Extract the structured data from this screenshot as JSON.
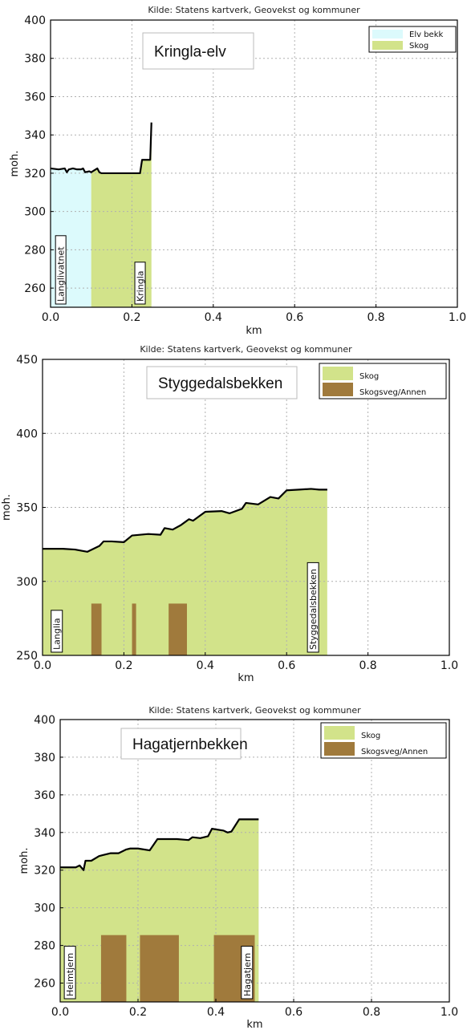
{
  "colors": {
    "elv_bekk": "#dcfafc",
    "skog": "#d2e38a",
    "skogsveg": "#a07a3c",
    "profile_line": "#000000",
    "grid": "#b0b0b0"
  },
  "chart_data": [
    {
      "type": "area",
      "source": "Kilde: Statens kartverk, Geovekst og kommuner",
      "title": "Kringla-elv",
      "xlabel": "km",
      "ylabel": "moh.",
      "xlim": [
        0,
        1.0
      ],
      "ylim": [
        250,
        400
      ],
      "xticks": [
        "0.0",
        "0.2",
        "0.4",
        "0.6",
        "0.8",
        "1.0"
      ],
      "yticks": [
        "260",
        "280",
        "300",
        "320",
        "340",
        "360",
        "380",
        "400"
      ],
      "grid": true,
      "legend_position": "top-right",
      "legend": [
        {
          "label": "Elv bekk",
          "color_key": "elv_bekk"
        },
        {
          "label": "Skog",
          "color_key": "skog"
        }
      ],
      "land_cover": [
        {
          "class": "Elv bekk",
          "from_km": 0.0,
          "to_km": 0.1,
          "color_key": "elv_bekk"
        },
        {
          "class": "Skog",
          "from_km": 0.1,
          "to_km": 0.25,
          "color_key": "skog"
        }
      ],
      "roads": [],
      "road_top": null,
      "profile": {
        "x": [
          0.0,
          0.02,
          0.035,
          0.04,
          0.045,
          0.055,
          0.065,
          0.075,
          0.08,
          0.085,
          0.095,
          0.1,
          0.115,
          0.12,
          0.125,
          0.13,
          0.15,
          0.175,
          0.2,
          0.22,
          0.225,
          0.245,
          0.248
        ],
        "y": [
          322.5,
          322.0,
          322.5,
          320.5,
          322.0,
          322.5,
          322.0,
          322.0,
          322.5,
          320.5,
          321.0,
          320.5,
          322.5,
          320.5,
          320.0,
          320.0,
          320.0,
          320.0,
          320.0,
          320.0,
          327.0,
          327.0,
          346.5
        ]
      },
      "place_labels": [
        {
          "text": "Langlivatnet",
          "x": 0.025
        },
        {
          "text": "Kringla",
          "x": 0.22
        }
      ]
    },
    {
      "type": "area",
      "source": "Kilde: Statens kartverk, Geovekst og kommuner",
      "title": "Styggedalsbekken",
      "xlabel": "km",
      "ylabel": "moh.",
      "xlim": [
        0,
        1.0
      ],
      "ylim": [
        250,
        450
      ],
      "xticks": [
        "0.0",
        "0.2",
        "0.4",
        "0.6",
        "0.8",
        "1.0"
      ],
      "yticks": [
        "250",
        "300",
        "350",
        "400",
        "450"
      ],
      "grid": true,
      "legend_position": "top-right",
      "legend": [
        {
          "label": "Skog",
          "color_key": "skog"
        },
        {
          "label": "Skogsveg/Annen",
          "color_key": "skogsveg"
        }
      ],
      "land_cover": [
        {
          "class": "Skog",
          "from_km": 0.0,
          "to_km": 0.7,
          "color_key": "skog"
        }
      ],
      "roads": [
        {
          "from_km": 0.12,
          "to_km": 0.145
        },
        {
          "from_km": 0.22,
          "to_km": 0.23
        },
        {
          "from_km": 0.31,
          "to_km": 0.355
        }
      ],
      "road_top": 285,
      "profile": {
        "x": [
          0.0,
          0.05,
          0.08,
          0.1,
          0.11,
          0.14,
          0.15,
          0.17,
          0.2,
          0.22,
          0.26,
          0.29,
          0.3,
          0.32,
          0.34,
          0.35,
          0.36,
          0.37,
          0.4,
          0.44,
          0.46,
          0.49,
          0.5,
          0.53,
          0.56,
          0.58,
          0.6,
          0.63,
          0.66,
          0.68,
          0.7
        ],
        "y": [
          322,
          322,
          321.5,
          320.5,
          320,
          324,
          327,
          327,
          326.5,
          331,
          332,
          331.5,
          336,
          335,
          338,
          340,
          342,
          341,
          347,
          347.5,
          346,
          349,
          353,
          352,
          357,
          356,
          361.5,
          362,
          362.5,
          362,
          362
        ]
      },
      "place_labels": [
        {
          "text": "Langlia",
          "x": 0.035
        },
        {
          "text": "Styggedalsbekken",
          "x": 0.665
        }
      ]
    },
    {
      "type": "area",
      "source": "Kilde: Statens kartverk, Geovekst og kommuner",
      "title": "Hagatjernbekken",
      "xlabel": "km",
      "ylabel": "moh.",
      "xlim": [
        0,
        1.0
      ],
      "ylim": [
        250,
        400
      ],
      "xticks": [
        "0.0",
        "0.2",
        "0.4",
        "0.6",
        "0.8",
        "1.0"
      ],
      "yticks": [
        "260",
        "280",
        "300",
        "320",
        "340",
        "360",
        "380",
        "400"
      ],
      "grid": true,
      "legend_position": "top-right",
      "legend": [
        {
          "label": "Skog",
          "color_key": "skog"
        },
        {
          "label": "Skogsveg/Annen",
          "color_key": "skogsveg"
        }
      ],
      "land_cover": [
        {
          "class": "Skog",
          "from_km": 0.0,
          "to_km": 0.515,
          "color_key": "skog"
        }
      ],
      "roads": [
        {
          "from_km": 0.105,
          "to_km": 0.17
        },
        {
          "from_km": 0.205,
          "to_km": 0.305
        },
        {
          "from_km": 0.395,
          "to_km": 0.5
        }
      ],
      "road_top": 285.5,
      "profile": {
        "x": [
          0.0,
          0.04,
          0.05,
          0.06,
          0.065,
          0.08,
          0.1,
          0.13,
          0.15,
          0.17,
          0.18,
          0.2,
          0.23,
          0.25,
          0.26,
          0.3,
          0.33,
          0.34,
          0.36,
          0.38,
          0.39,
          0.42,
          0.43,
          0.44,
          0.46,
          0.47,
          0.51
        ],
        "y": [
          321.5,
          321.5,
          322.5,
          320,
          325,
          325,
          327.5,
          329,
          329,
          331,
          331.5,
          331.5,
          330.5,
          336.5,
          336.5,
          336.5,
          336,
          337.5,
          337,
          338,
          342,
          341,
          340,
          340.5,
          347,
          347,
          347
        ]
      },
      "place_labels": [
        {
          "text": "Heimtjern",
          "x": 0.025
        },
        {
          "text": "Hagatjern",
          "x": 0.48
        }
      ]
    }
  ]
}
